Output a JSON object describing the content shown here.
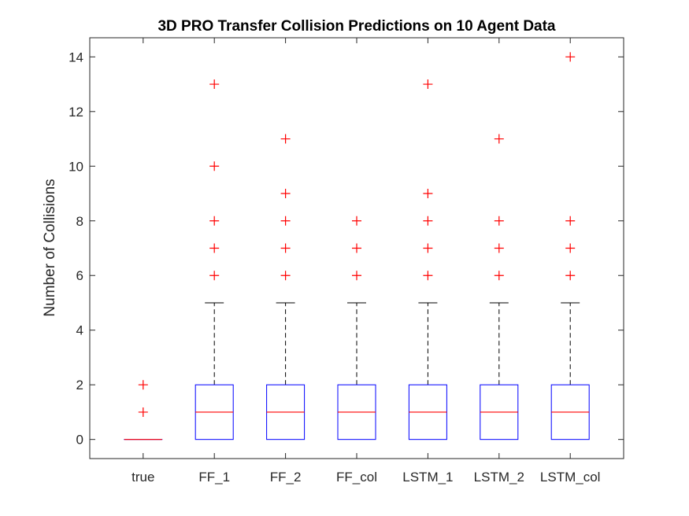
{
  "chart_data": {
    "type": "box",
    "title": "3D PRO Transfer Collision Predictions on 10 Agent Data",
    "ylabel": "Number of Collisions",
    "xlabel": "",
    "ylim": [
      -0.7,
      14.7
    ],
    "yticks": [
      0,
      2,
      4,
      6,
      8,
      10,
      12,
      14
    ],
    "grid": false,
    "colors": {
      "box": "#0000ff",
      "median": "#ff0000",
      "whisker": "#000000",
      "outlier": "#ff0000"
    },
    "categories": [
      "true",
      "FF_1",
      "FF_2",
      "FF_col",
      "LSTM_1",
      "LSTM_2",
      "LSTM_col"
    ],
    "boxes": [
      {
        "q1": 0,
        "median": 0,
        "q3": 0,
        "whisker_low": 0,
        "whisker_high": 0,
        "outliers": [
          1,
          2
        ]
      },
      {
        "q1": 0,
        "median": 1,
        "q3": 2,
        "whisker_low": 0,
        "whisker_high": 5,
        "outliers": [
          6,
          7,
          8,
          10,
          13
        ]
      },
      {
        "q1": 0,
        "median": 1,
        "q3": 2,
        "whisker_low": 0,
        "whisker_high": 5,
        "outliers": [
          6,
          7,
          8,
          9,
          11
        ]
      },
      {
        "q1": 0,
        "median": 1,
        "q3": 2,
        "whisker_low": 0,
        "whisker_high": 5,
        "outliers": [
          6,
          7,
          8
        ]
      },
      {
        "q1": 0,
        "median": 1,
        "q3": 2,
        "whisker_low": 0,
        "whisker_high": 5,
        "outliers": [
          6,
          7,
          8,
          9,
          13
        ]
      },
      {
        "q1": 0,
        "median": 1,
        "q3": 2,
        "whisker_low": 0,
        "whisker_high": 5,
        "outliers": [
          6,
          7,
          8,
          11
        ]
      },
      {
        "q1": 0,
        "median": 1,
        "q3": 2,
        "whisker_low": 0,
        "whisker_high": 5,
        "outliers": [
          6,
          7,
          8,
          14
        ]
      }
    ]
  }
}
